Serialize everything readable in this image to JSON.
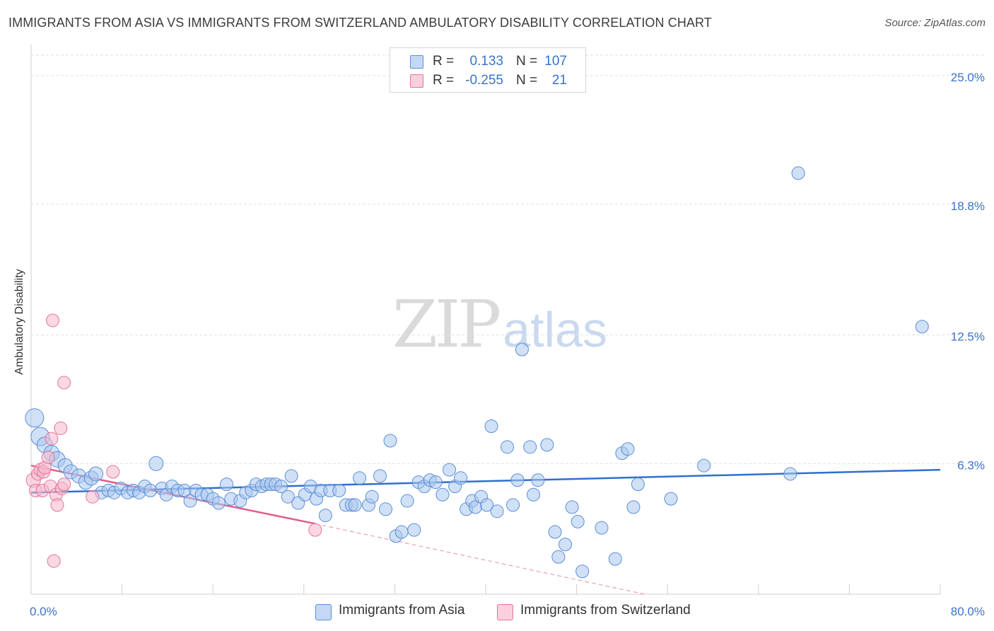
{
  "header": {
    "title": "IMMIGRANTS FROM ASIA VS IMMIGRANTS FROM SWITZERLAND AMBULATORY DISABILITY CORRELATION CHART",
    "source": "Source: ZipAtlas.com"
  },
  "watermark": {
    "zip": "ZIP",
    "atlas": "atlas"
  },
  "legend": {
    "rows": [
      {
        "r_label": "R =",
        "r_value": "0.133",
        "n_label": "N =",
        "n_value": "107",
        "color": "#a9c6ee"
      },
      {
        "r_label": "R =",
        "r_value": "-0.255",
        "n_label": "N =",
        "n_value": "21",
        "color": "#f6b8cc"
      }
    ]
  },
  "chart_data": {
    "type": "scatter",
    "title": "IMMIGRANTS FROM ASIA VS IMMIGRANTS FROM SWITZERLAND AMBULATORY DISABILITY CORRELATION CHART",
    "xlabel": "",
    "ylabel": "Ambulatory Disability",
    "xlim": [
      0,
      80
    ],
    "ylim": [
      0,
      26.5
    ],
    "x_tick_labels": [
      "0.0%",
      "80.0%"
    ],
    "y_ticks": [
      6.3,
      12.5,
      18.8,
      25.0
    ],
    "y_tick_labels": [
      "6.3%",
      "12.5%",
      "18.8%",
      "25.0%"
    ],
    "grid": true,
    "legend_position": "top-center",
    "series": [
      {
        "name": "Immigrants from Asia",
        "color": "#5b8fd6",
        "fill": "#a9c6ee",
        "trend": {
          "x": [
            0,
            80
          ],
          "y": [
            4.9,
            6.0
          ]
        },
        "points": [
          [
            0.3,
            8.5,
            13
          ],
          [
            0.8,
            7.6,
            13
          ],
          [
            1.2,
            7.2,
            11
          ],
          [
            1.8,
            6.8,
            11
          ],
          [
            2.3,
            6.5,
            11
          ],
          [
            3.0,
            6.2,
            10
          ],
          [
            3.5,
            5.9,
            10
          ],
          [
            4.2,
            5.7,
            10
          ],
          [
            4.8,
            5.4,
            10
          ],
          [
            5.3,
            5.6,
            10
          ],
          [
            5.7,
            5.8,
            10
          ],
          [
            6.2,
            4.9,
            9
          ],
          [
            6.8,
            5.0,
            9
          ],
          [
            7.3,
            4.9,
            9
          ],
          [
            7.9,
            5.1,
            9
          ],
          [
            8.5,
            4.9,
            9
          ],
          [
            9.0,
            5.0,
            9
          ],
          [
            9.5,
            4.9,
            9
          ],
          [
            10.0,
            5.2,
            9
          ],
          [
            10.5,
            5.0,
            9
          ],
          [
            11.0,
            6.3,
            10
          ],
          [
            11.5,
            5.1,
            9
          ],
          [
            11.9,
            4.8,
            9
          ],
          [
            12.4,
            5.2,
            9
          ],
          [
            12.9,
            5.0,
            9
          ],
          [
            13.5,
            5.0,
            9
          ],
          [
            14.0,
            4.5,
            9
          ],
          [
            14.5,
            5.0,
            9
          ],
          [
            15.0,
            4.8,
            9
          ],
          [
            15.5,
            4.8,
            9
          ],
          [
            16.0,
            4.6,
            9
          ],
          [
            16.5,
            4.4,
            9
          ],
          [
            17.2,
            5.3,
            9
          ],
          [
            17.6,
            4.6,
            9
          ],
          [
            18.4,
            4.5,
            9
          ],
          [
            18.9,
            4.9,
            9
          ],
          [
            19.4,
            5.0,
            9
          ],
          [
            19.8,
            5.3,
            9
          ],
          [
            20.3,
            5.2,
            9
          ],
          [
            20.7,
            5.3,
            9
          ],
          [
            21.1,
            5.3,
            9
          ],
          [
            21.5,
            5.3,
            9
          ],
          [
            22.0,
            5.2,
            9
          ],
          [
            22.6,
            4.7,
            9
          ],
          [
            22.9,
            5.7,
            9
          ],
          [
            23.5,
            4.4,
            9
          ],
          [
            24.1,
            4.8,
            9
          ],
          [
            24.6,
            5.2,
            9
          ],
          [
            25.1,
            4.6,
            9
          ],
          [
            25.5,
            5.0,
            9
          ],
          [
            25.9,
            3.8,
            9
          ],
          [
            26.3,
            5.0,
            9
          ],
          [
            27.1,
            5.0,
            9
          ],
          [
            27.7,
            4.3,
            9
          ],
          [
            28.2,
            4.3,
            9
          ],
          [
            28.5,
            4.3,
            9
          ],
          [
            28.9,
            5.6,
            9
          ],
          [
            29.7,
            4.3,
            9
          ],
          [
            30.0,
            4.7,
            9
          ],
          [
            30.7,
            5.7,
            9
          ],
          [
            31.2,
            4.1,
            9
          ],
          [
            31.6,
            7.4,
            9
          ],
          [
            32.1,
            2.8,
            9
          ],
          [
            32.6,
            3.0,
            9
          ],
          [
            33.1,
            4.5,
            9
          ],
          [
            33.7,
            3.1,
            9
          ],
          [
            34.1,
            5.4,
            9
          ],
          [
            34.6,
            5.2,
            9
          ],
          [
            35.1,
            5.5,
            9
          ],
          [
            35.6,
            5.4,
            9
          ],
          [
            36.2,
            4.8,
            9
          ],
          [
            36.8,
            6.0,
            9
          ],
          [
            37.3,
            5.2,
            9
          ],
          [
            37.8,
            5.6,
            9
          ],
          [
            38.3,
            4.1,
            9
          ],
          [
            38.8,
            4.5,
            9
          ],
          [
            39.1,
            4.2,
            9
          ],
          [
            39.6,
            4.7,
            9
          ],
          [
            40.1,
            4.3,
            9
          ],
          [
            40.5,
            8.1,
            9
          ],
          [
            41.0,
            4.0,
            9
          ],
          [
            41.9,
            7.1,
            9
          ],
          [
            42.4,
            4.3,
            9
          ],
          [
            42.8,
            5.5,
            9
          ],
          [
            43.2,
            11.8,
            9
          ],
          [
            43.9,
            7.1,
            9
          ],
          [
            44.2,
            4.8,
            9
          ],
          [
            44.6,
            5.5,
            9
          ],
          [
            45.4,
            7.2,
            9
          ],
          [
            46.1,
            3.0,
            9
          ],
          [
            46.4,
            1.8,
            9
          ],
          [
            47.0,
            2.4,
            9
          ],
          [
            47.6,
            4.2,
            9
          ],
          [
            48.1,
            3.5,
            9
          ],
          [
            48.5,
            1.1,
            9
          ],
          [
            50.2,
            3.2,
            9
          ],
          [
            51.4,
            1.7,
            9
          ],
          [
            52.0,
            6.8,
            9
          ],
          [
            52.5,
            7.0,
            9
          ],
          [
            53.0,
            4.2,
            9
          ],
          [
            53.4,
            5.3,
            9
          ],
          [
            56.3,
            4.6,
            9
          ],
          [
            59.2,
            6.2,
            9
          ],
          [
            66.8,
            5.8,
            9
          ],
          [
            67.5,
            20.3,
            9
          ],
          [
            78.4,
            12.9,
            9
          ]
        ]
      },
      {
        "name": "Immigrants from Switzerland",
        "color": "#e4739a",
        "fill": "#f6b8cc",
        "trend": {
          "x": [
            0,
            25
          ],
          "y": [
            6.2,
            3.4
          ]
        },
        "trend_dashed": {
          "x": [
            25,
            54
          ],
          "y": [
            3.4,
            0.0
          ]
        },
        "points": [
          [
            0.2,
            5.5,
            10
          ],
          [
            0.4,
            5.0,
            9
          ],
          [
            0.6,
            5.8,
            9
          ],
          [
            0.8,
            6.0,
            9
          ],
          [
            1.0,
            5.0,
            9
          ],
          [
            1.1,
            5.9,
            9
          ],
          [
            1.2,
            6.1,
            9
          ],
          [
            1.5,
            6.6,
            9
          ],
          [
            1.7,
            5.2,
            9
          ],
          [
            1.8,
            7.5,
            9
          ],
          [
            1.9,
            13.2,
            9
          ],
          [
            2.0,
            1.6,
            9
          ],
          [
            2.2,
            4.8,
            9
          ],
          [
            2.3,
            4.3,
            9
          ],
          [
            2.6,
            8.0,
            9
          ],
          [
            2.7,
            5.1,
            9
          ],
          [
            2.9,
            5.3,
            9
          ],
          [
            2.9,
            10.2,
            9
          ],
          [
            5.4,
            4.7,
            9
          ],
          [
            7.2,
            5.9,
            9
          ],
          [
            25.0,
            3.1,
            9
          ]
        ]
      }
    ]
  },
  "bottom_legend": {
    "items": [
      {
        "label": "Immigrants from Asia",
        "color": "#a9c6ee",
        "border": "#5b8fd6"
      },
      {
        "label": "Immigrants from Switzerland",
        "color": "#f6b8cc",
        "border": "#e4739a"
      }
    ]
  }
}
